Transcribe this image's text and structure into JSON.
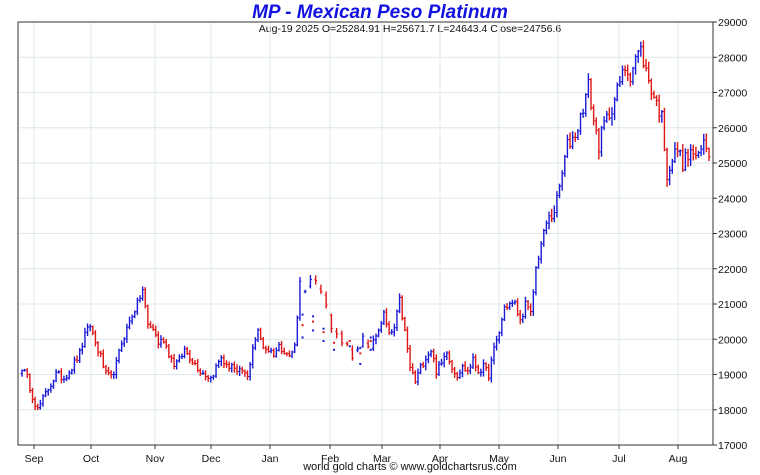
{
  "chart_data": {
    "type": "ohlc",
    "title": "MP  -  Mexican Peso Platinum",
    "subtitle": "Aug-19  2025   O=25284.91   H=25671.7   L=24643.4   Close=24756.6",
    "footer": "world gold charts © www.goldchartsrus.com",
    "y_axis": {
      "min": 17000,
      "max": 29000,
      "step": 1000,
      "position": "right",
      "tick_labels": [
        "17000",
        "18000",
        "19000",
        "20000",
        "21000",
        "22000",
        "23000",
        "24000",
        "25000",
        "26000",
        "27000",
        "28000",
        "29000"
      ]
    },
    "x_axis": {
      "tick_labels": [
        "Sep",
        "Oct",
        "Nov",
        "Dec",
        "Jan",
        "Feb",
        "Mar",
        "Apr",
        "May",
        "Jun",
        "Jul",
        "Aug"
      ]
    },
    "grid": true,
    "up_color": "#1a1ad6",
    "down_color": "#e01515",
    "anchor_closes": [
      [
        0,
        19200
      ],
      [
        2,
        18900
      ],
      [
        4,
        18400
      ],
      [
        6,
        18000
      ],
      [
        8,
        18300
      ],
      [
        10,
        18600
      ],
      [
        13,
        19000
      ],
      [
        16,
        18900
      ],
      [
        19,
        19200
      ],
      [
        22,
        19600
      ],
      [
        24,
        20100
      ],
      [
        26,
        20400
      ],
      [
        28,
        19900
      ],
      [
        30,
        19500
      ],
      [
        32,
        19000
      ],
      [
        34,
        18900
      ],
      [
        36,
        19300
      ],
      [
        38,
        19900
      ],
      [
        40,
        20300
      ],
      [
        42,
        20700
      ],
      [
        44,
        21000
      ],
      [
        46,
        21400
      ],
      [
        48,
        20400
      ],
      [
        50,
        20300
      ],
      [
        52,
        19900
      ],
      [
        54,
        20000
      ],
      [
        56,
        19600
      ],
      [
        58,
        19300
      ],
      [
        60,
        19400
      ],
      [
        62,
        19700
      ],
      [
        64,
        19500
      ],
      [
        66,
        19300
      ],
      [
        68,
        19100
      ],
      [
        70,
        19000
      ],
      [
        72,
        18900
      ],
      [
        74,
        19200
      ],
      [
        76,
        19500
      ],
      [
        78,
        19200
      ],
      [
        80,
        19300
      ],
      [
        82,
        19000
      ],
      [
        84,
        19100
      ],
      [
        86,
        18900
      ],
      [
        88,
        19800
      ],
      [
        90,
        20200
      ],
      [
        92,
        19800
      ],
      [
        94,
        19700
      ],
      [
        96,
        19600
      ],
      [
        98,
        19800
      ],
      [
        100,
        19700
      ],
      [
        102,
        19500
      ],
      [
        104,
        19800
      ],
      [
        106,
        21600
      ],
      [
        108,
        21300
      ],
      [
        110,
        21600
      ],
      [
        112,
        21700
      ],
      [
        114,
        21300
      ],
      [
        116,
        21000
      ],
      [
        118,
        20400
      ],
      [
        120,
        20200
      ],
      [
        122,
        20000
      ],
      [
        124,
        19800
      ],
      [
        126,
        19500
      ],
      [
        128,
        19800
      ],
      [
        130,
        20000
      ],
      [
        132,
        19700
      ],
      [
        134,
        19900
      ],
      [
        136,
        20300
      ],
      [
        138,
        20700
      ],
      [
        140,
        20100
      ],
      [
        142,
        20300
      ],
      [
        144,
        21100
      ],
      [
        146,
        20200
      ],
      [
        148,
        19200
      ],
      [
        150,
        18800
      ],
      [
        152,
        19200
      ],
      [
        154,
        19500
      ],
      [
        156,
        19700
      ],
      [
        158,
        19100
      ],
      [
        160,
        19300
      ],
      [
        162,
        19700
      ],
      [
        164,
        19200
      ],
      [
        166,
        19000
      ],
      [
        168,
        19200
      ],
      [
        170,
        19100
      ],
      [
        172,
        19400
      ],
      [
        174,
        19100
      ],
      [
        176,
        19200
      ],
      [
        178,
        19000
      ],
      [
        180,
        19700
      ],
      [
        182,
        20200
      ],
      [
        184,
        20900
      ],
      [
        186,
        21000
      ],
      [
        188,
        21000
      ],
      [
        190,
        20500
      ],
      [
        192,
        21000
      ],
      [
        194,
        20700
      ],
      [
        196,
        22000
      ],
      [
        198,
        22700
      ],
      [
        200,
        23300
      ],
      [
        202,
        23500
      ],
      [
        204,
        23900
      ],
      [
        206,
        24700
      ],
      [
        208,
        25500
      ],
      [
        210,
        25700
      ],
      [
        212,
        26000
      ],
      [
        214,
        26600
      ],
      [
        216,
        27200
      ],
      [
        218,
        26200
      ],
      [
        220,
        25500
      ],
      [
        222,
        26100
      ],
      [
        224,
        26400
      ],
      [
        226,
        26800
      ],
      [
        228,
        27300
      ],
      [
        230,
        27700
      ],
      [
        232,
        27500
      ],
      [
        234,
        28000
      ],
      [
        236,
        28200
      ],
      [
        238,
        27600
      ],
      [
        240,
        27100
      ],
      [
        242,
        26700
      ],
      [
        244,
        26300
      ],
      [
        246,
        24700
      ],
      [
        248,
        25100
      ],
      [
        250,
        25400
      ],
      [
        252,
        25000
      ],
      [
        254,
        25200
      ],
      [
        256,
        25300
      ],
      [
        258,
        25100
      ],
      [
        260,
        25600
      ],
      [
        262,
        25300
      ]
    ],
    "gap_points": [
      {
        "x": 107,
        "values": [
          20050,
          20400,
          20700
        ]
      },
      {
        "x": 111,
        "values": [
          20250,
          20500,
          20650
        ]
      },
      {
        "x": 115,
        "values": [
          19950,
          20200,
          20300
        ]
      },
      {
        "x": 119,
        "values": [
          19700,
          19900
        ]
      },
      {
        "x": 125,
        "values": [
          19800,
          19950
        ]
      },
      {
        "x": 129,
        "values": [
          19300,
          19600,
          19750
        ]
      },
      {
        "x": 133,
        "values": [
          19700,
          19950,
          20050
        ]
      }
    ]
  }
}
